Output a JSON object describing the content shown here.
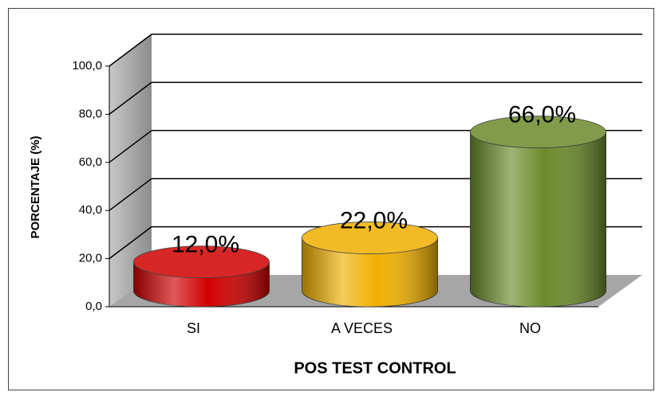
{
  "chart_data": {
    "type": "bar",
    "x_label": "POS TEST CONTROL",
    "y_label": "PORCENTAJE  (%)",
    "categories": [
      "SI",
      "A VECES",
      "NO"
    ],
    "series": [
      {
        "name": "POS TEST CONTROL",
        "colors": [
          "#d00000",
          "#f0b000",
          "#6b8a2b"
        ],
        "values": [
          12,
          22,
          66
        ],
        "value_labels": [
          "12,0%",
          "22,0%",
          "66,0%"
        ]
      }
    ],
    "ylim": [
      0,
      100
    ],
    "yticks": [
      {
        "value": 0,
        "label": "0,0"
      },
      {
        "value": 20,
        "label": "20,0"
      },
      {
        "value": 40,
        "label": "40,0"
      },
      {
        "value": 60,
        "label": "60,0"
      },
      {
        "value": 80,
        "label": "80,0"
      },
      {
        "value": 100,
        "label": "100,0"
      }
    ],
    "grid": true
  }
}
